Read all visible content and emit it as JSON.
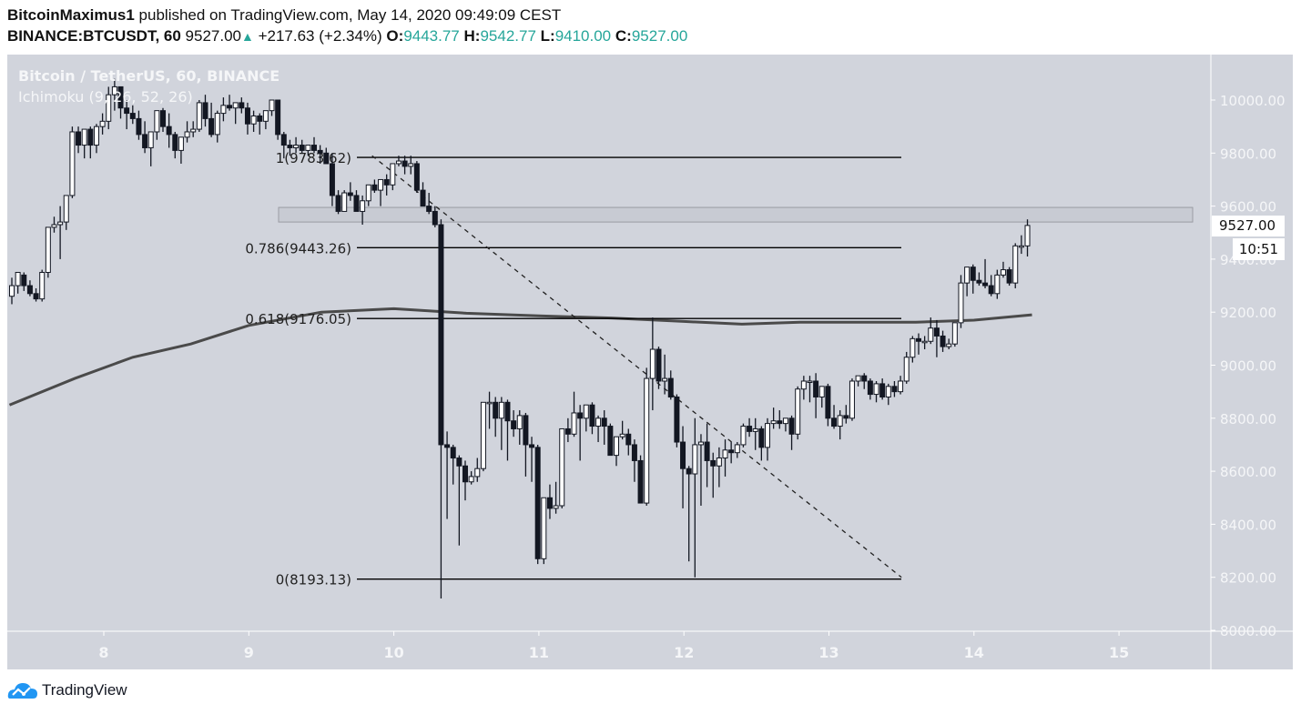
{
  "header": {
    "author": "BitcoinMaximus1",
    "published_text": "published on TradingView.com, May 14, 2020 09:49:09 CEST",
    "symbol": "BINANCE:BTCUSDT, 60",
    "last_price": "9527.00",
    "change": "+217.63 (+2.34%)",
    "open_label": "O:",
    "open": "9443.77",
    "high_label": "H:",
    "high": "9542.77",
    "low_label": "L:",
    "low": "9410.00",
    "close_label": "C:",
    "close": "9527.00",
    "up_color": "#26a69a"
  },
  "legend": {
    "title": "Bitcoin / TetherUS, 60, BINANCE",
    "indicator": "Ichimoku (9, 26, 52, 26)"
  },
  "price_axis": {
    "current_price_label": "9527.00",
    "countdown_label": "10:51"
  },
  "footer": {
    "brand": "TradingView",
    "brand_color": "#2196f3"
  },
  "colors": {
    "background": "#d1d4dc",
    "axis_text": "#f5f6f8",
    "bull_body": "#ffffff",
    "bear_body": "#131722",
    "ma_line": "#4a4a4a"
  },
  "chart_data": {
    "type": "candlestick",
    "title": "Bitcoin / TetherUS, 60, BINANCE",
    "xlabel": "",
    "ylabel": "",
    "ylim": [
      8000,
      10200
    ],
    "y_ticks": [
      "10000.00",
      "9800.00",
      "9600.00",
      "9400.00",
      "9200.00",
      "9000.00",
      "8800.00",
      "8600.00",
      "8400.00",
      "8200.00",
      "8000.00"
    ],
    "x_ticks": [
      "8",
      "9",
      "10",
      "11",
      "12",
      "13",
      "14",
      "15"
    ],
    "grid": false,
    "fib_levels": [
      {
        "label": "1(9783.62)",
        "ratio": 1,
        "price": 9783.62
      },
      {
        "label": "0.786(9443.26)",
        "ratio": 0.786,
        "price": 9443.26
      },
      {
        "label": "0.618(9176.05)",
        "ratio": 0.618,
        "price": 9176.05
      },
      {
        "label": "0(8193.13)",
        "ratio": 0,
        "price": 8193.13
      }
    ],
    "resistance_zone": [
      9540,
      9595
    ],
    "trendline": {
      "from": {
        "x_day": 9.85,
        "price": 9790
      },
      "to": {
        "x_day": 13.5,
        "price": 8200
      },
      "style": "dashed"
    },
    "moving_average": {
      "points_day_price": [
        [
          7.35,
          8850
        ],
        [
          7.8,
          8950
        ],
        [
          8.2,
          9030
        ],
        [
          8.6,
          9080
        ],
        [
          9.0,
          9150
        ],
        [
          9.5,
          9200
        ],
        [
          10.0,
          9213
        ],
        [
          10.5,
          9196
        ],
        [
          11.0,
          9186
        ],
        [
          11.5,
          9178
        ],
        [
          12.0,
          9165
        ],
        [
          12.4,
          9155
        ],
        [
          12.8,
          9162
        ],
        [
          13.2,
          9162
        ],
        [
          13.6,
          9162
        ],
        [
          14.0,
          9170
        ],
        [
          14.4,
          9190
        ]
      ]
    },
    "candles": [
      [
        9260,
        9330,
        9230,
        9300
      ],
      [
        9300,
        9340,
        9270,
        9350
      ],
      [
        9340,
        9350,
        9280,
        9300
      ],
      [
        9300,
        9320,
        9260,
        9270
      ],
      [
        9270,
        9290,
        9240,
        9250
      ],
      [
        9250,
        9360,
        9240,
        9350
      ],
      [
        9350,
        9520,
        9330,
        9520
      ],
      [
        9520,
        9560,
        9500,
        9530
      ],
      [
        9530,
        9600,
        9400,
        9540
      ],
      [
        9540,
        9640,
        9510,
        9640
      ],
      [
        9640,
        9900,
        9630,
        9880
      ],
      [
        9880,
        9900,
        9800,
        9830
      ],
      [
        9830,
        9880,
        9780,
        9890
      ],
      [
        9890,
        9900,
        9780,
        9830
      ],
      [
        9830,
        9910,
        9800,
        9900
      ],
      [
        9900,
        9950,
        9870,
        9920
      ],
      [
        9920,
        10050,
        9890,
        10020
      ],
      [
        10020,
        10080,
        9960,
        10050
      ],
      [
        10050,
        10050,
        9930,
        9970
      ],
      [
        9970,
        10000,
        9890,
        9950
      ],
      [
        9950,
        9980,
        9910,
        9930
      ],
      [
        9930,
        9960,
        9850,
        9870
      ],
      [
        9870,
        9920,
        9800,
        9820
      ],
      [
        9820,
        9880,
        9750,
        9880
      ],
      [
        9880,
        9950,
        9850,
        9960
      ],
      [
        9960,
        9970,
        9880,
        9900
      ],
      [
        9900,
        9950,
        9820,
        9870
      ],
      [
        9870,
        9880,
        9780,
        9810
      ],
      [
        9810,
        9860,
        9760,
        9860
      ],
      [
        9860,
        9920,
        9840,
        9880
      ],
      [
        9880,
        9920,
        9860,
        9890
      ],
      [
        9890,
        10000,
        9880,
        9990
      ],
      [
        9990,
        10020,
        9900,
        9930
      ],
      [
        9930,
        9990,
        9860,
        9870
      ],
      [
        9870,
        9960,
        9840,
        9950
      ],
      [
        9950,
        10010,
        9920,
        9980
      ],
      [
        9980,
        10020,
        9960,
        9970
      ],
      [
        9970,
        9990,
        9910,
        9990
      ],
      [
        9990,
        10010,
        9950,
        9970
      ],
      [
        9970,
        9990,
        9870,
        9910
      ],
      [
        9910,
        9960,
        9880,
        9940
      ],
      [
        9940,
        9950,
        9870,
        9920
      ],
      [
        9920,
        9960,
        9890,
        9960
      ],
      [
        9960,
        10000,
        9940,
        10000
      ],
      [
        10000,
        10000,
        9850,
        9870
      ],
      [
        9870,
        9880,
        9780,
        9830
      ],
      [
        9830,
        9850,
        9790,
        9820
      ],
      [
        9820,
        9860,
        9800,
        9830
      ],
      [
        9830,
        9850,
        9800,
        9810
      ],
      [
        9810,
        9830,
        9790,
        9830
      ],
      [
        9830,
        9860,
        9800,
        9810
      ],
      [
        9810,
        9830,
        9760,
        9800
      ],
      [
        9800,
        9820,
        9780,
        9760
      ],
      [
        9760,
        9800,
        9600,
        9640
      ],
      [
        9640,
        9660,
        9570,
        9580
      ],
      [
        9580,
        9660,
        9580,
        9650
      ],
      [
        9650,
        9690,
        9620,
        9640
      ],
      [
        9640,
        9660,
        9590,
        9580
      ],
      [
        9580,
        9640,
        9530,
        9620
      ],
      [
        9620,
        9670,
        9600,
        9680
      ],
      [
        9680,
        9700,
        9650,
        9660
      ],
      [
        9660,
        9700,
        9600,
        9700
      ],
      [
        9700,
        9720,
        9640,
        9680
      ],
      [
        9680,
        9760,
        9660,
        9760
      ],
      [
        9760,
        9790,
        9750,
        9770
      ],
      [
        9770,
        9790,
        9720,
        9750
      ],
      [
        9750,
        9790,
        9720,
        9760
      ],
      [
        9760,
        9770,
        9650,
        9660
      ],
      [
        9660,
        9690,
        9600,
        9600
      ],
      [
        9600,
        9650,
        9570,
        9580
      ],
      [
        9580,
        9600,
        9520,
        9530
      ],
      [
        9530,
        9550,
        8120,
        8700
      ],
      [
        8700,
        8750,
        8420,
        8690
      ],
      [
        8690,
        8700,
        8550,
        8650
      ],
      [
        8650,
        8660,
        8320,
        8620
      ],
      [
        8620,
        8640,
        8490,
        8560
      ],
      [
        8560,
        8600,
        8550,
        8580
      ],
      [
        8580,
        8650,
        8560,
        8610
      ],
      [
        8610,
        8860,
        8600,
        8860
      ],
      [
        8860,
        8900,
        8760,
        8860
      ],
      [
        8860,
        8880,
        8730,
        8800
      ],
      [
        8800,
        8880,
        8680,
        8860
      ],
      [
        8860,
        8870,
        8640,
        8790
      ],
      [
        8790,
        8830,
        8730,
        8760
      ],
      [
        8760,
        8830,
        8700,
        8810
      ],
      [
        8810,
        8820,
        8580,
        8700
      ],
      [
        8700,
        8730,
        8560,
        8690
      ],
      [
        8690,
        8700,
        8250,
        8270
      ],
      [
        8270,
        8500,
        8250,
        8500
      ],
      [
        8500,
        8550,
        8420,
        8460
      ],
      [
        8460,
        8560,
        8440,
        8470
      ],
      [
        8470,
        8760,
        8460,
        8760
      ],
      [
        8760,
        8800,
        8710,
        8740
      ],
      [
        8740,
        8900,
        8730,
        8820
      ],
      [
        8820,
        8850,
        8640,
        8800
      ],
      [
        8800,
        8850,
        8750,
        8850
      ],
      [
        8850,
        8860,
        8740,
        8770
      ],
      [
        8770,
        8810,
        8710,
        8800
      ],
      [
        8800,
        8830,
        8700,
        8770
      ],
      [
        8770,
        8780,
        8660,
        8660
      ],
      [
        8660,
        8690,
        8620,
        8730
      ],
      [
        8730,
        8790,
        8720,
        8740
      ],
      [
        8740,
        8760,
        8660,
        8700
      ],
      [
        8700,
        8720,
        8560,
        8640
      ],
      [
        8640,
        8660,
        8480,
        8480
      ],
      [
        8480,
        8990,
        8470,
        8950
      ],
      [
        8950,
        9180,
        8830,
        9060
      ],
      [
        9060,
        9070,
        8910,
        8940
      ],
      [
        8940,
        9040,
        8890,
        8950
      ],
      [
        8950,
        8980,
        8870,
        8880
      ],
      [
        8880,
        8890,
        8690,
        8710
      ],
      [
        8710,
        8770,
        8460,
        8610
      ],
      [
        8610,
        8620,
        8260,
        8590
      ],
      [
        8590,
        8800,
        8200,
        8700
      ],
      [
        8700,
        8740,
        8470,
        8710
      ],
      [
        8710,
        8780,
        8540,
        8640
      ],
      [
        8640,
        8670,
        8500,
        8620
      ],
      [
        8620,
        8690,
        8540,
        8650
      ],
      [
        8650,
        8720,
        8580,
        8680
      ],
      [
        8680,
        8710,
        8630,
        8670
      ],
      [
        8670,
        8710,
        8650,
        8700
      ],
      [
        8700,
        8780,
        8690,
        8770
      ],
      [
        8770,
        8800,
        8730,
        8750
      ],
      [
        8750,
        8800,
        8680,
        8760
      ],
      [
        8760,
        8770,
        8640,
        8690
      ],
      [
        8690,
        8800,
        8640,
        8780
      ],
      [
        8780,
        8840,
        8760,
        8790
      ],
      [
        8790,
        8830,
        8760,
        8780
      ],
      [
        8780,
        8800,
        8750,
        8800
      ],
      [
        8800,
        8810,
        8680,
        8740
      ],
      [
        8740,
        8920,
        8720,
        8910
      ],
      [
        8910,
        8960,
        8870,
        8940
      ],
      [
        8940,
        8960,
        8860,
        8940
      ],
      [
        8940,
        8970,
        8800,
        8880
      ],
      [
        8880,
        8900,
        8840,
        8920
      ],
      [
        8920,
        8930,
        8770,
        8800
      ],
      [
        8800,
        8850,
        8760,
        8770
      ],
      [
        8770,
        8830,
        8720,
        8810
      ],
      [
        8810,
        8850,
        8780,
        8800
      ],
      [
        8800,
        8950,
        8790,
        8940
      ],
      [
        8940,
        8960,
        8920,
        8960
      ],
      [
        8960,
        8970,
        8910,
        8940
      ],
      [
        8940,
        8950,
        8870,
        8890
      ],
      [
        8890,
        8940,
        8860,
        8930
      ],
      [
        8930,
        8950,
        8870,
        8880
      ],
      [
        8880,
        8930,
        8850,
        8920
      ],
      [
        8920,
        8940,
        8880,
        8900
      ],
      [
        8900,
        8960,
        8890,
        8940
      ],
      [
        8940,
        9050,
        8930,
        9030
      ],
      [
        9030,
        9110,
        9010,
        9100
      ],
      [
        9100,
        9120,
        9040,
        9090
      ],
      [
        9090,
        9110,
        9060,
        9090
      ],
      [
        9090,
        9180,
        9080,
        9140
      ],
      [
        9140,
        9170,
        9030,
        9110
      ],
      [
        9110,
        9130,
        9050,
        9070
      ],
      [
        9070,
        9100,
        9060,
        9080
      ],
      [
        9080,
        9160,
        9070,
        9160
      ],
      [
        9160,
        9340,
        9140,
        9310
      ],
      [
        9310,
        9360,
        9260,
        9370
      ],
      [
        9370,
        9380,
        9270,
        9320
      ],
      [
        9320,
        9350,
        9300,
        9310
      ],
      [
        9310,
        9400,
        9290,
        9300
      ],
      [
        9300,
        9340,
        9260,
        9270
      ],
      [
        9270,
        9360,
        9250,
        9340
      ],
      [
        9340,
        9390,
        9330,
        9360
      ],
      [
        9360,
        9370,
        9300,
        9310
      ],
      [
        9310,
        9460,
        9290,
        9450
      ],
      [
        9450,
        9490,
        9420,
        9450
      ],
      [
        9450,
        9550,
        9410,
        9527
      ]
    ]
  }
}
